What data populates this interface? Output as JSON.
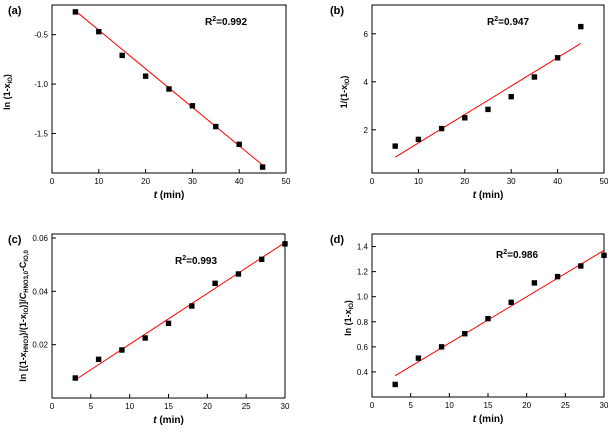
{
  "chart_data": [
    {
      "type": "scatter",
      "panel_label": "(a)",
      "xlabel_italic": "t",
      "xlabel_unit": " (min)",
      "ylabel": "ln (1-x",
      "ylabel_sub": "IO",
      "ylabel_end": ")",
      "r2_prefix": "R",
      "r2_sup": "2",
      "r2_value": "=0.992",
      "xlim": [
        0,
        50
      ],
      "ylim": [
        -1.9,
        -0.2
      ],
      "xticks": [
        0,
        10,
        20,
        30,
        40,
        50
      ],
      "xtick_labels": [
        "0",
        "10",
        "20",
        "30",
        "40",
        "50"
      ],
      "yticks": [
        -0.5,
        -1.0,
        -1.5
      ],
      "ytick_labels": [
        "-0.5",
        "-1.0",
        "-1.5"
      ],
      "x": [
        5,
        10,
        15,
        20,
        25,
        30,
        35,
        40,
        45
      ],
      "y": [
        -0.27,
        -0.47,
        -0.71,
        -0.92,
        -1.05,
        -1.22,
        -1.43,
        -1.61,
        -1.84
      ],
      "fit": {
        "x": [
          5,
          45
        ],
        "y": [
          -0.26,
          -1.82
        ]
      },
      "marker_color": "#000000",
      "fit_color": "#ff0000"
    },
    {
      "type": "scatter",
      "panel_label": "(b)",
      "xlabel_italic": "t",
      "xlabel_unit": " (min)",
      "ylabel": "1/(1-x",
      "ylabel_sub": "IO",
      "ylabel_end": ")",
      "r2_prefix": "R",
      "r2_sup": "2",
      "r2_value": "=0.947",
      "xlim": [
        0,
        50
      ],
      "ylim": [
        0.2,
        7.2
      ],
      "xticks": [
        0,
        10,
        20,
        30,
        40,
        50
      ],
      "xtick_labels": [
        "0",
        "10",
        "20",
        "30",
        "40",
        "50"
      ],
      "yticks": [
        2,
        4,
        6
      ],
      "ytick_labels": [
        "2",
        "4",
        "6"
      ],
      "x": [
        5,
        10,
        15,
        20,
        25,
        30,
        35,
        40,
        45
      ],
      "y": [
        1.32,
        1.6,
        2.05,
        2.5,
        2.85,
        3.38,
        4.2,
        5.0,
        6.3
      ],
      "fit": {
        "x": [
          5,
          45
        ],
        "y": [
          0.86,
          5.6
        ]
      },
      "marker_color": "#000000",
      "fit_color": "#ff0000"
    },
    {
      "type": "scatter",
      "panel_label": "(c)",
      "xlabel_italic": "t",
      "xlabel_unit": " (min)",
      "ylabel_html": "ln [(1-x<sub>HNO3</sub>)/(1-x<sub>IO</sub>)] / C<sub>HNO3,0</sub>-C<sub>IO,0</sub>",
      "ylabel_parts": [
        "ln [(1-x",
        "HNO3",
        ")/(1-x",
        "IO",
        ")]/",
        "C",
        "HNO3,0",
        "-C",
        "IO,0"
      ],
      "r2_prefix": "R",
      "r2_sup": "2",
      "r2_value": "=0.993",
      "xlim": [
        0,
        30
      ],
      "ylim": [
        0.0,
        0.0615
      ],
      "xticks": [
        0,
        5,
        10,
        15,
        20,
        25,
        30
      ],
      "xtick_labels": [
        "0",
        "5",
        "10",
        "15",
        "20",
        "25",
        "30"
      ],
      "yticks": [
        0.02,
        0.04,
        0.06
      ],
      "ytick_labels": [
        "0.02",
        "0.04",
        "0.06"
      ],
      "x": [
        3,
        6,
        9,
        12,
        15,
        18,
        21,
        24,
        27,
        30
      ],
      "y": [
        0.0075,
        0.0145,
        0.018,
        0.0225,
        0.028,
        0.0345,
        0.043,
        0.0465,
        0.052,
        0.0578
      ],
      "fit": {
        "x": [
          3,
          30
        ],
        "y": [
          0.0068,
          0.0583
        ]
      },
      "marker_color": "#000000",
      "fit_color": "#ff0000"
    },
    {
      "type": "scatter",
      "panel_label": "(d)",
      "xlabel_italic": "t",
      "xlabel_unit": " (min)",
      "ylabel": "ln (1-x",
      "ylabel_sub": "IO",
      "ylabel_end": ")",
      "r2_prefix": "R",
      "r2_sup": "2",
      "r2_value": "=0.986",
      "xlim": [
        0,
        30
      ],
      "ylim": [
        0.2,
        1.5
      ],
      "xticks": [
        0,
        5,
        10,
        15,
        20,
        25,
        30
      ],
      "xtick_labels": [
        "0",
        "5",
        "10",
        "15",
        "20",
        "25",
        "30"
      ],
      "yticks": [
        0.4,
        0.6,
        0.8,
        1.0,
        1.2,
        1.4
      ],
      "ytick_labels": [
        "0.4",
        "0.6",
        "0.8",
        "1.0",
        "1.2",
        "1.4"
      ],
      "x": [
        3,
        6,
        9,
        12,
        15,
        18,
        21,
        24,
        27,
        30
      ],
      "y": [
        0.3,
        0.51,
        0.6,
        0.705,
        0.825,
        0.955,
        1.11,
        1.16,
        1.245,
        1.33
      ],
      "fit": {
        "x": [
          3,
          30
        ],
        "y": [
          0.37,
          1.37
        ]
      },
      "marker_color": "#000000",
      "fit_color": "#ff0000"
    }
  ]
}
